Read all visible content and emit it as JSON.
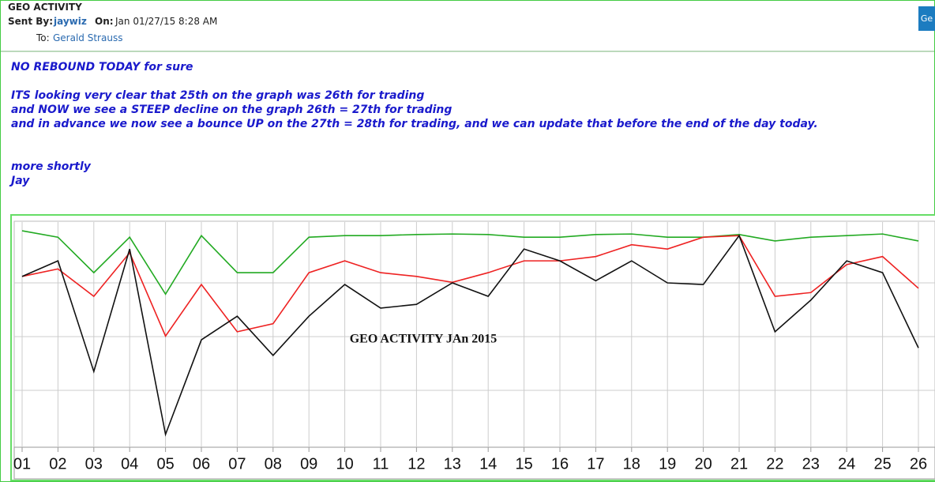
{
  "email": {
    "subject": "GEO ACTIVITY",
    "sent_by_label": "Sent By:",
    "sender": "jaywiz",
    "on_label": "On:",
    "date": "Jan 01/27/15 8:28 AM",
    "to_label": "To:",
    "recipient": "Gerald Strauss",
    "button": "Ge",
    "body": [
      "NO REBOUND TODAY for sure",
      "ITS looking very clear that 25th on the graph was 26th for trading",
      "and NOW we see a STEEP decline on the graph 26th = 27th for trading",
      "and in advance we now see a bounce UP on the 27th = 28th for trading, and we can update that before the end of the day today.",
      "more shortly",
      "Jay"
    ]
  },
  "chart_data": {
    "type": "line",
    "title": "GEO ACTIVITY JAn 2015",
    "categories": [
      "01",
      "02",
      "03",
      "04",
      "05",
      "06",
      "07",
      "08",
      "09",
      "10",
      "11",
      "12",
      "13",
      "14",
      "15",
      "16",
      "17",
      "18",
      "19",
      "20",
      "21",
      "22",
      "23",
      "24",
      "25",
      "26"
    ],
    "series": [
      {
        "color": "#22aa22",
        "values": [
          3.97,
          3.85,
          3.19,
          3.85,
          2.79,
          3.88,
          3.19,
          3.19,
          3.85,
          3.88,
          3.88,
          3.9,
          3.91,
          3.9,
          3.85,
          3.85,
          3.9,
          3.91,
          3.85,
          3.85,
          3.9,
          3.78,
          3.85,
          3.88,
          3.91,
          3.78
        ]
      },
      {
        "color": "#ee2222",
        "values": [
          3.12,
          3.26,
          2.75,
          3.56,
          2.01,
          2.97,
          2.09,
          2.24,
          3.19,
          3.41,
          3.19,
          3.12,
          3.01,
          3.19,
          3.41,
          3.41,
          3.49,
          3.71,
          3.63,
          3.85,
          3.88,
          2.75,
          2.82,
          3.34,
          3.49,
          2.9
        ]
      },
      {
        "color": "#111111",
        "values": [
          3.12,
          3.41,
          1.35,
          3.63,
          0.18,
          1.94,
          2.38,
          1.65,
          2.38,
          2.97,
          2.53,
          2.6,
          3.0,
          2.75,
          3.63,
          3.41,
          3.04,
          3.41,
          3.0,
          2.97,
          3.88,
          2.09,
          2.68,
          3.41,
          3.19,
          1.79
        ]
      }
    ],
    "ylim": [
      0,
      4
    ],
    "yticks": [
      1,
      2,
      3
    ],
    "grid": true
  }
}
